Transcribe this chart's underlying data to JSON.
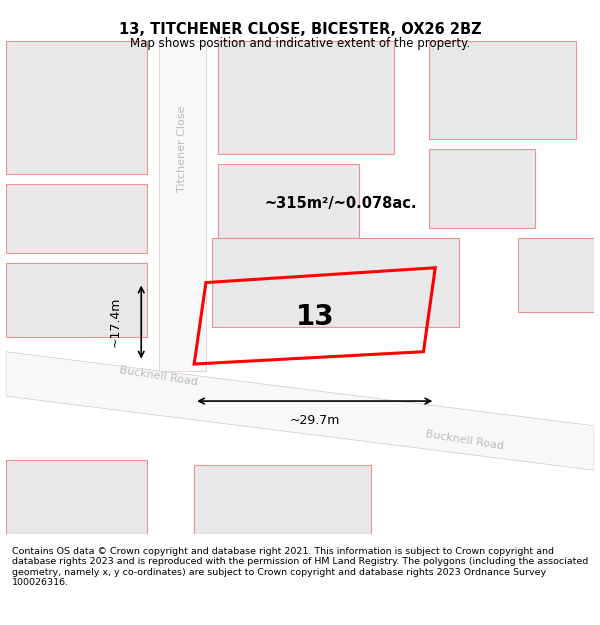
{
  "title": "13, TITCHENER CLOSE, BICESTER, OX26 2BZ",
  "subtitle": "Map shows position and indicative extent of the property.",
  "footer": "Contains OS data © Crown copyright and database right 2021. This information is subject to Crown copyright and database rights 2023 and is reproduced with the permission of HM Land Registry. The polygons (including the associated geometry, namely x, y co-ordinates) are subject to Crown copyright and database rights 2023 Ordnance Survey 100026316.",
  "bg_color": "#f5f5f5",
  "map_bg": "#f0f0f0",
  "title_fontsize": 11,
  "subtitle_fontsize": 9,
  "footer_fontsize": 7.5,
  "plot_number": "13",
  "area_text": "~315m²/~0.078ac.",
  "width_text": "~29.7m",
  "height_text": "~17.4m",
  "road_label_1": "Titchener Close",
  "road_label_2": "Bucknell Road",
  "road_label_3": "Bucknell Road",
  "highlight_color": "#ff0000",
  "building_fill": "#e8e8e8",
  "road_fill": "#ffffff",
  "road_outline": "#f0b0b0",
  "dim_line_color": "#1a1a1a"
}
